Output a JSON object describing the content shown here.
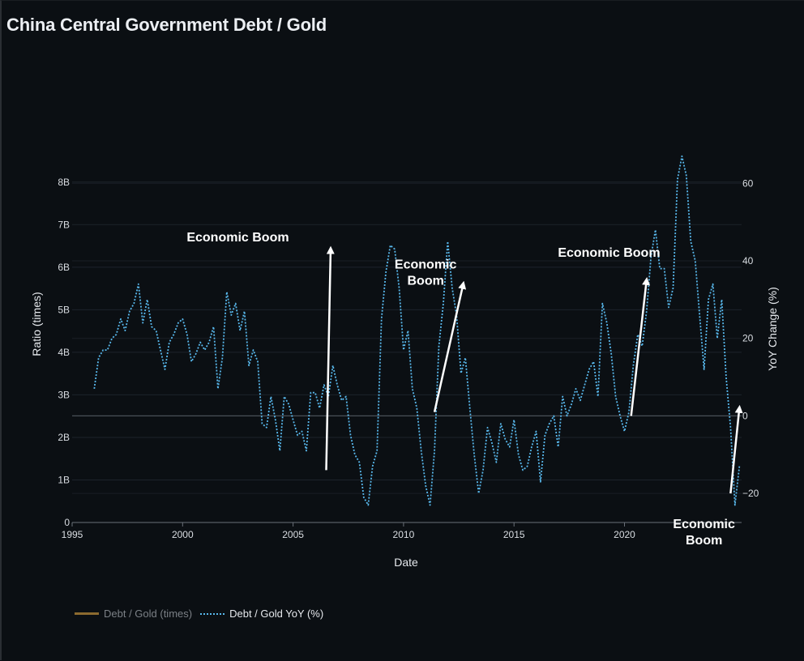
{
  "title": "China Central Government Debt / Gold",
  "legend": {
    "items": [
      {
        "label": "Debt / Gold (times)",
        "color": "#8c6a2f",
        "visible": false
      },
      {
        "label": "Debt / Gold YoY (%)",
        "color": "#58b8ec",
        "visible": true
      }
    ]
  },
  "chart_data": {
    "type": "line",
    "title": "China Central Government Debt / Gold",
    "xlabel": "Date",
    "ylabel_left": "Ratio (times)",
    "ylabel_right": "YoY Change (%)",
    "x_range": [
      1995,
      2025.3
    ],
    "y_left_range": [
      0,
      8.7
    ],
    "y_right_range": [
      -27.5,
      68
    ],
    "x_ticks": [
      1995,
      2000,
      2005,
      2010,
      2015,
      2020
    ],
    "x_tick_labels": [
      "1995",
      "2000",
      "2005",
      "2010",
      "2015",
      "2020"
    ],
    "y_left_ticks": [
      0,
      1,
      2,
      3,
      4,
      5,
      6,
      7,
      8
    ],
    "y_left_tick_labels": [
      "0",
      "1B",
      "2B",
      "3B",
      "4B",
      "5B",
      "6B",
      "7B",
      "8B"
    ],
    "y_right_ticks": [
      -20,
      0,
      20,
      40,
      60
    ],
    "y_right_tick_labels": [
      "−20",
      "0",
      "20",
      "40",
      "60"
    ],
    "series": [
      {
        "name": "Debt / Gold YoY (%)",
        "axis": "right",
        "style": "dotted",
        "color": "#58b8ec",
        "points": [
          [
            1996.0,
            7
          ],
          [
            1996.2,
            15
          ],
          [
            1996.4,
            17
          ],
          [
            1996.6,
            17
          ],
          [
            1996.8,
            20
          ],
          [
            1997.0,
            21
          ],
          [
            1997.2,
            25
          ],
          [
            1997.4,
            22
          ],
          [
            1997.6,
            27
          ],
          [
            1997.8,
            29
          ],
          [
            1998.0,
            34
          ],
          [
            1998.2,
            24
          ],
          [
            1998.4,
            30
          ],
          [
            1998.6,
            23
          ],
          [
            1998.8,
            22
          ],
          [
            1999.0,
            17
          ],
          [
            1999.2,
            12
          ],
          [
            1999.4,
            19
          ],
          [
            1999.6,
            21
          ],
          [
            1999.8,
            24
          ],
          [
            2000.0,
            25
          ],
          [
            2000.2,
            21
          ],
          [
            2000.4,
            14
          ],
          [
            2000.6,
            16
          ],
          [
            2000.8,
            19
          ],
          [
            2001.0,
            17
          ],
          [
            2001.2,
            19
          ],
          [
            2001.4,
            23
          ],
          [
            2001.6,
            7
          ],
          [
            2001.8,
            15
          ],
          [
            2002.0,
            32
          ],
          [
            2002.2,
            26
          ],
          [
            2002.4,
            29
          ],
          [
            2002.6,
            22
          ],
          [
            2002.8,
            27
          ],
          [
            2003.0,
            13
          ],
          [
            2003.2,
            17
          ],
          [
            2003.4,
            14
          ],
          [
            2003.6,
            -2
          ],
          [
            2003.8,
            -3
          ],
          [
            2004.0,
            5
          ],
          [
            2004.2,
            -1
          ],
          [
            2004.4,
            -9
          ],
          [
            2004.6,
            5
          ],
          [
            2004.8,
            3
          ],
          [
            2005.0,
            -1
          ],
          [
            2005.2,
            -5
          ],
          [
            2005.4,
            -4
          ],
          [
            2005.6,
            -9
          ],
          [
            2005.8,
            6
          ],
          [
            2006.0,
            6
          ],
          [
            2006.2,
            2
          ],
          [
            2006.4,
            8
          ],
          [
            2006.6,
            5
          ],
          [
            2006.8,
            13
          ],
          [
            2007.0,
            8
          ],
          [
            2007.2,
            4
          ],
          [
            2007.4,
            5
          ],
          [
            2007.6,
            -5
          ],
          [
            2007.8,
            -10
          ],
          [
            2008.0,
            -12
          ],
          [
            2008.2,
            -21
          ],
          [
            2008.4,
            -23
          ],
          [
            2008.6,
            -13
          ],
          [
            2008.8,
            -9
          ],
          [
            2009.0,
            25
          ],
          [
            2009.2,
            37
          ],
          [
            2009.4,
            44
          ],
          [
            2009.6,
            43
          ],
          [
            2009.8,
            33
          ],
          [
            2010.0,
            17
          ],
          [
            2010.2,
            22
          ],
          [
            2010.4,
            7
          ],
          [
            2010.6,
            2
          ],
          [
            2010.8,
            -9
          ],
          [
            2011.0,
            -18
          ],
          [
            2011.2,
            -23
          ],
          [
            2011.4,
            -9
          ],
          [
            2011.6,
            18
          ],
          [
            2011.8,
            29
          ],
          [
            2012.0,
            45
          ],
          [
            2012.2,
            33
          ],
          [
            2012.4,
            26
          ],
          [
            2012.6,
            11
          ],
          [
            2012.8,
            15
          ],
          [
            2013.0,
            2
          ],
          [
            2013.2,
            -10
          ],
          [
            2013.4,
            -20
          ],
          [
            2013.6,
            -14
          ],
          [
            2013.8,
            -3
          ],
          [
            2014.0,
            -7
          ],
          [
            2014.2,
            -12
          ],
          [
            2014.4,
            -2
          ],
          [
            2014.6,
            -6
          ],
          [
            2014.8,
            -8
          ],
          [
            2015.0,
            -1
          ],
          [
            2015.2,
            -10
          ],
          [
            2015.4,
            -14
          ],
          [
            2015.6,
            -13
          ],
          [
            2015.8,
            -8
          ],
          [
            2016.0,
            -4
          ],
          [
            2016.2,
            -17
          ],
          [
            2016.4,
            -5
          ],
          [
            2016.6,
            -2
          ],
          [
            2016.8,
            0
          ],
          [
            2017.0,
            -8
          ],
          [
            2017.2,
            5
          ],
          [
            2017.4,
            0
          ],
          [
            2017.6,
            3
          ],
          [
            2017.8,
            7
          ],
          [
            2018.0,
            4
          ],
          [
            2018.2,
            8
          ],
          [
            2018.4,
            12
          ],
          [
            2018.6,
            14
          ],
          [
            2018.8,
            5
          ],
          [
            2019.0,
            29
          ],
          [
            2019.2,
            24
          ],
          [
            2019.4,
            16
          ],
          [
            2019.6,
            5
          ],
          [
            2019.8,
            0
          ],
          [
            2020.0,
            -4
          ],
          [
            2020.2,
            1
          ],
          [
            2020.4,
            13
          ],
          [
            2020.6,
            21
          ],
          [
            2020.8,
            18
          ],
          [
            2021.0,
            27
          ],
          [
            2021.2,
            41
          ],
          [
            2021.4,
            48
          ],
          [
            2021.6,
            38
          ],
          [
            2021.8,
            38
          ],
          [
            2022.0,
            28
          ],
          [
            2022.2,
            33
          ],
          [
            2022.4,
            61
          ],
          [
            2022.6,
            67
          ],
          [
            2022.8,
            62
          ],
          [
            2023.0,
            45
          ],
          [
            2023.2,
            40
          ],
          [
            2023.4,
            26
          ],
          [
            2023.6,
            12
          ],
          [
            2023.8,
            30
          ],
          [
            2024.0,
            34
          ],
          [
            2024.2,
            20
          ],
          [
            2024.4,
            30
          ],
          [
            2024.6,
            10
          ],
          [
            2024.8,
            -3
          ],
          [
            2025.0,
            -23
          ],
          [
            2025.2,
            -13
          ]
        ]
      }
    ],
    "zero_line": {
      "axis": "right",
      "value": 0
    },
    "annotations": [
      {
        "text": "Economic Boom",
        "lines": [
          "Economic Boom"
        ],
        "tail": [
          2006.5,
          -14
        ],
        "head": [
          2006.7,
          43
        ],
        "text_at": [
          2002.5,
          45
        ]
      },
      {
        "text": "Economic Boom",
        "lines": [
          "Economic",
          "Boom"
        ],
        "tail": [
          2011.4,
          1
        ],
        "head": [
          2012.7,
          34
        ],
        "text_at": [
          2011.0,
          38
        ]
      },
      {
        "text": "Economic Boom",
        "lines": [
          "Economic Boom"
        ],
        "tail": [
          2020.3,
          0
        ],
        "head": [
          2021.0,
          35
        ],
        "text_at": [
          2019.3,
          41
        ]
      },
      {
        "text": "Economic Boom",
        "lines": [
          "Economic",
          "Boom"
        ],
        "tail": [
          2024.8,
          -20
        ],
        "head": [
          2025.2,
          2
        ],
        "text_at": [
          2023.6,
          -29
        ]
      }
    ]
  }
}
